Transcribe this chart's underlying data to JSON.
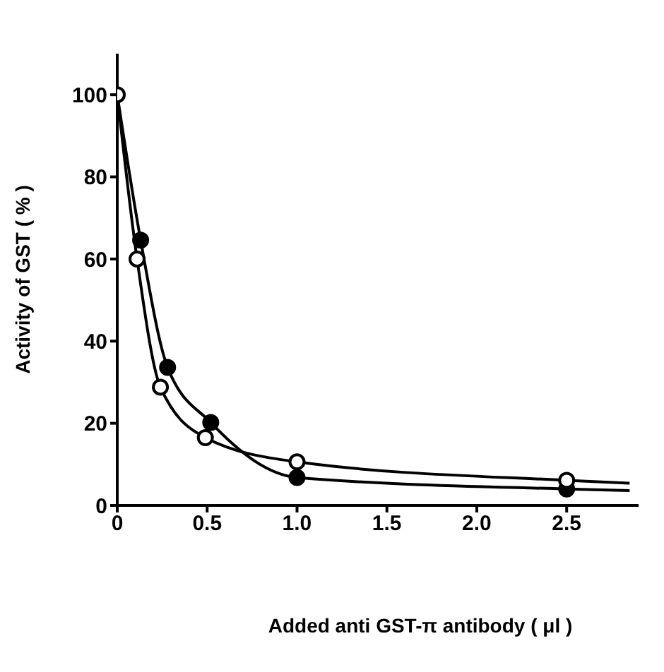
{
  "chart_data": {
    "type": "scatter",
    "xlabel": "Added anti GST-π antibody  ( μl )",
    "ylabel": "Activity of GST  ( % )",
    "xlim": [
      0,
      2.9
    ],
    "xticks": [
      {
        "value": 0,
        "label": "0"
      },
      0.5,
      {
        "value": 1,
        "label": "1.0"
      },
      1.5,
      {
        "value": 2,
        "label": "2.0"
      },
      2.5
    ],
    "ylim": [
      0,
      110
    ],
    "yticks": [
      0,
      20,
      40,
      60,
      80,
      100
    ],
    "grid": false,
    "marker": "circle",
    "series": [
      {
        "type": "line",
        "color": "#000000",
        "marker": "none",
        "x": [
          0,
          0.11,
          0.24,
          0.49,
          1.0,
          2.5,
          2.85
        ],
        "values": [
          100,
          60,
          28.8,
          16.5,
          10.6,
          6.1,
          5.4
        ]
      },
      {
        "type": "line",
        "color": "#000000",
        "marker": "none",
        "x": [
          0,
          0.13,
          0.28,
          0.52,
          1.0,
          2.5,
          2.85
        ],
        "values": [
          100,
          64.6,
          33.6,
          20.2,
          6.8,
          4.0,
          3.6
        ]
      },
      {
        "color": "#000000",
        "x": [
          0.13,
          0.28,
          0.52,
          1.0,
          2.5
        ],
        "values": [
          64.6,
          33.6,
          20.2,
          6.8,
          4.0
        ]
      },
      {
        "color": "#ffffff",
        "x": [
          0,
          0.11,
          0.24,
          0.49,
          1.0,
          2.5
        ],
        "values": [
          100,
          60,
          28.8,
          16.5,
          10.6,
          6.1
        ]
      }
    ]
  }
}
